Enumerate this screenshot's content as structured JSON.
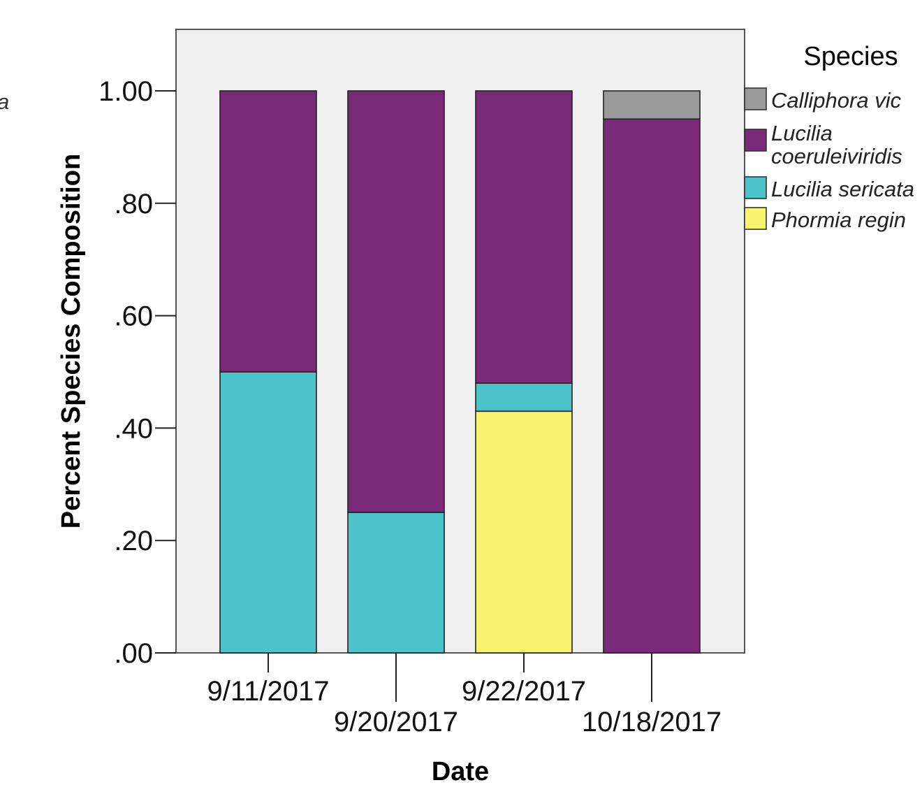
{
  "chart_data": {
    "type": "bar",
    "stacked": true,
    "xlabel": "Date",
    "ylabel": "Percent Species Composition",
    "ylim": [
      0,
      1.1
    ],
    "yticks": [
      {
        "value": 0,
        "label": ".00"
      },
      {
        "value": 0.2,
        "label": ".20"
      },
      {
        "value": 0.4,
        "label": ".40"
      },
      {
        "value": 0.6,
        "label": ".60"
      },
      {
        "value": 0.8,
        "label": ".80"
      },
      {
        "value": 1.0,
        "label": "1.00"
      }
    ],
    "categories": [
      "9/11/2017",
      "9/20/2017",
      "9/22/2017",
      "10/18/2017"
    ],
    "legend": {
      "title": "Species",
      "placement": "right",
      "entries": [
        {
          "key": "calliphora",
          "lines": [
            "Calliphora vic"
          ],
          "color": "#9a9a9a"
        },
        {
          "key": "lucilia_coer",
          "lines": [
            "Lucilia",
            "coeruleiviridis"
          ],
          "color": "#7b2a7a"
        },
        {
          "key": "lucilia_ser",
          "lines": [
            "Lucilia sericata"
          ],
          "color": "#4cc3c8"
        },
        {
          "key": "phormia",
          "lines": [
            "Phormia regin"
          ],
          "color": "#f8f46e"
        }
      ]
    },
    "stack_order": [
      "phormia",
      "lucilia_ser",
      "lucilia_coer",
      "calliphora"
    ],
    "series": [
      {
        "key": "calliphora",
        "values": [
          0,
          0,
          0,
          0.05
        ]
      },
      {
        "key": "lucilia_coer",
        "values": [
          0.5,
          0.75,
          0.52,
          0.95
        ]
      },
      {
        "key": "lucilia_ser",
        "values": [
          0.5,
          0.25,
          0.05,
          0
        ]
      },
      {
        "key": "phormia",
        "values": [
          0,
          0,
          0.43,
          0
        ]
      }
    ],
    "plot_background": "#f0f0f0"
  },
  "stray_text": "a"
}
